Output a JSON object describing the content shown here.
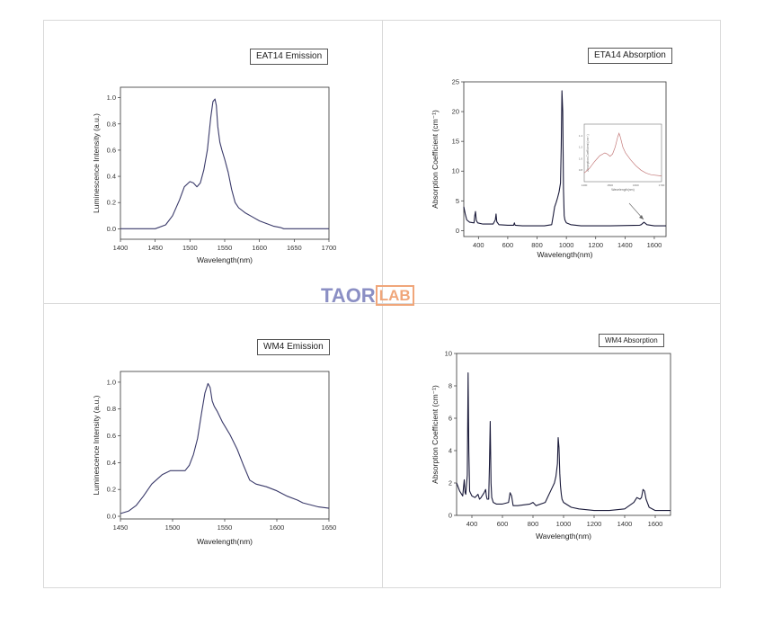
{
  "watermark": {
    "part1": "TAOR",
    "part2": "LAB"
  },
  "chart_data": [
    {
      "type": "line",
      "title": "EAT14 Emission",
      "xlabel": "Wavelength(nm)",
      "ylabel": "Luminescence Intensity (a.u.)",
      "xlim": [
        1400,
        1700
      ],
      "ylim": [
        -0.08,
        1.08
      ],
      "xticks": [
        1400,
        1450,
        1500,
        1550,
        1600,
        1650,
        1700
      ],
      "yticks": [
        0.0,
        0.2,
        0.4,
        0.6,
        0.8,
        1.0
      ],
      "color": "#3a3a6a",
      "series": [
        {
          "x": [
            1400,
            1450,
            1465,
            1475,
            1485,
            1492,
            1500,
            1505,
            1510,
            1515,
            1520,
            1525,
            1530,
            1533,
            1536,
            1538,
            1540,
            1543,
            1546,
            1550,
            1555,
            1560,
            1565,
            1570,
            1580,
            1590,
            1600,
            1610,
            1620,
            1630,
            1635,
            1640,
            1650,
            1700
          ],
          "y": [
            0.0,
            0.0,
            0.03,
            0.1,
            0.22,
            0.32,
            0.36,
            0.35,
            0.32,
            0.35,
            0.45,
            0.6,
            0.85,
            0.97,
            0.99,
            0.94,
            0.78,
            0.66,
            0.6,
            0.53,
            0.43,
            0.3,
            0.2,
            0.16,
            0.12,
            0.09,
            0.06,
            0.04,
            0.02,
            0.01,
            0.0,
            0.0,
            0.0,
            0.0
          ]
        }
      ]
    },
    {
      "type": "line",
      "title": "ETA14 Absorption",
      "xlabel": "Wavelength(nm)",
      "ylabel": "Absorption Coefficient (cm⁻¹)",
      "xlim": [
        300,
        1680
      ],
      "ylim": [
        -1,
        25
      ],
      "xticks": [
        400,
        600,
        800,
        1000,
        1200,
        1400,
        1600
      ],
      "yticks": [
        0,
        5,
        10,
        15,
        20,
        25
      ],
      "color": "#1a1a3a",
      "series": [
        {
          "x": [
            300,
            310,
            320,
            340,
            370,
            375,
            380,
            385,
            395,
            430,
            500,
            515,
            520,
            525,
            540,
            600,
            640,
            645,
            650,
            700,
            850,
            900,
            910,
            920,
            930,
            940,
            950,
            960,
            965,
            970,
            975,
            980,
            985,
            990,
            1000,
            1030,
            1100,
            1300,
            1500,
            1510,
            1530,
            1550,
            1600,
            1680
          ],
          "y": [
            4.0,
            2.8,
            1.8,
            1.4,
            1.3,
            2.5,
            3.2,
            1.7,
            1.3,
            1.1,
            1.1,
            1.8,
            2.8,
            1.5,
            1.0,
            0.9,
            0.9,
            1.3,
            0.9,
            0.8,
            0.8,
            1.0,
            2.5,
            4.0,
            4.7,
            5.5,
            6.5,
            8.0,
            14.0,
            23.5,
            20.0,
            7.0,
            2.5,
            1.8,
            1.3,
            1.0,
            0.8,
            0.8,
            0.9,
            1.0,
            1.4,
            1.0,
            0.8,
            0.8
          ]
        }
      ],
      "inset": {
        "ylabel": "Absorption Coefficient (cm⁻¹)",
        "xlabel": "Wavelength(nm)",
        "xlim": [
          1400,
          1700
        ],
        "ylim": [
          0.6,
          1.6
        ],
        "xticks": [
          1400,
          1500,
          1600,
          1700
        ],
        "yticks": [
          0.8,
          1.0,
          1.2,
          1.4
        ],
        "x": [
          1400,
          1420,
          1440,
          1460,
          1480,
          1490,
          1500,
          1510,
          1520,
          1530,
          1535,
          1540,
          1550,
          1560,
          1580,
          1600,
          1620,
          1640,
          1660,
          1700
        ],
        "y": [
          0.75,
          0.83,
          0.95,
          1.05,
          1.1,
          1.08,
          1.04,
          1.08,
          1.2,
          1.38,
          1.44,
          1.38,
          1.2,
          1.1,
          0.98,
          0.88,
          0.8,
          0.75,
          0.72,
          0.7
        ]
      }
    },
    {
      "type": "line",
      "title": "WM4 Emission",
      "xlabel": "Wavelength(nm)",
      "ylabel": "Luminescence Intensity (a.u.)",
      "xlim": [
        1450,
        1650
      ],
      "ylim": [
        -0.02,
        1.08
      ],
      "xticks": [
        1450,
        1500,
        1550,
        1600,
        1650
      ],
      "yticks": [
        0.0,
        0.2,
        0.4,
        0.6,
        0.8,
        1.0
      ],
      "color": "#3a3a6a",
      "series": [
        {
          "x": [
            1450,
            1458,
            1465,
            1472,
            1480,
            1490,
            1498,
            1505,
            1512,
            1516,
            1520,
            1524,
            1528,
            1531,
            1534,
            1536,
            1538,
            1540,
            1543,
            1548,
            1555,
            1562,
            1568,
            1574,
            1580,
            1590,
            1600,
            1610,
            1620,
            1625,
            1630,
            1640,
            1650
          ],
          "y": [
            0.02,
            0.04,
            0.08,
            0.15,
            0.24,
            0.31,
            0.34,
            0.34,
            0.34,
            0.38,
            0.46,
            0.58,
            0.78,
            0.92,
            0.99,
            0.96,
            0.86,
            0.82,
            0.78,
            0.7,
            0.61,
            0.5,
            0.38,
            0.27,
            0.24,
            0.22,
            0.19,
            0.15,
            0.12,
            0.1,
            0.09,
            0.07,
            0.06
          ]
        }
      ]
    },
    {
      "type": "line",
      "title": "WM4 Absorption",
      "xlabel": "Wavelength(nm)",
      "ylabel": "Absorption Coefficient (cm⁻¹)",
      "xlim": [
        300,
        1700
      ],
      "ylim": [
        0,
        10
      ],
      "xticks": [
        400,
        600,
        800,
        1000,
        1200,
        1400,
        1600
      ],
      "yticks": [
        0,
        2,
        4,
        6,
        8,
        10
      ],
      "color": "#1a1a3a",
      "series": [
        {
          "x": [
            300,
            320,
            340,
            350,
            355,
            360,
            370,
            375,
            380,
            385,
            390,
            400,
            420,
            440,
            450,
            460,
            480,
            490,
            495,
            500,
            510,
            515,
            520,
            525,
            530,
            540,
            560,
            600,
            640,
            650,
            660,
            670,
            700,
            780,
            800,
            820,
            880,
            900,
            920,
            940,
            950,
            960,
            965,
            970,
            975,
            980,
            985,
            990,
            1000,
            1050,
            1100,
            1200,
            1300,
            1400,
            1460,
            1480,
            1500,
            1510,
            1520,
            1530,
            1540,
            1560,
            1600,
            1700
          ],
          "y": [
            2.0,
            1.5,
            1.2,
            2.2,
            1.4,
            1.3,
            2.5,
            8.8,
            4.0,
            1.5,
            1.4,
            1.2,
            1.1,
            1.3,
            1.0,
            1.1,
            1.4,
            1.6,
            1.2,
            1.0,
            1.0,
            3.0,
            5.8,
            2.0,
            1.1,
            0.8,
            0.7,
            0.7,
            0.8,
            1.4,
            1.2,
            0.6,
            0.6,
            0.7,
            0.8,
            0.6,
            0.8,
            1.2,
            1.6,
            2.0,
            2.4,
            3.2,
            4.8,
            4.2,
            2.6,
            1.8,
            1.3,
            1.0,
            0.8,
            0.5,
            0.4,
            0.3,
            0.3,
            0.4,
            0.8,
            1.1,
            1.0,
            1.1,
            1.6,
            1.5,
            1.0,
            0.5,
            0.3,
            0.3
          ]
        }
      ]
    }
  ]
}
